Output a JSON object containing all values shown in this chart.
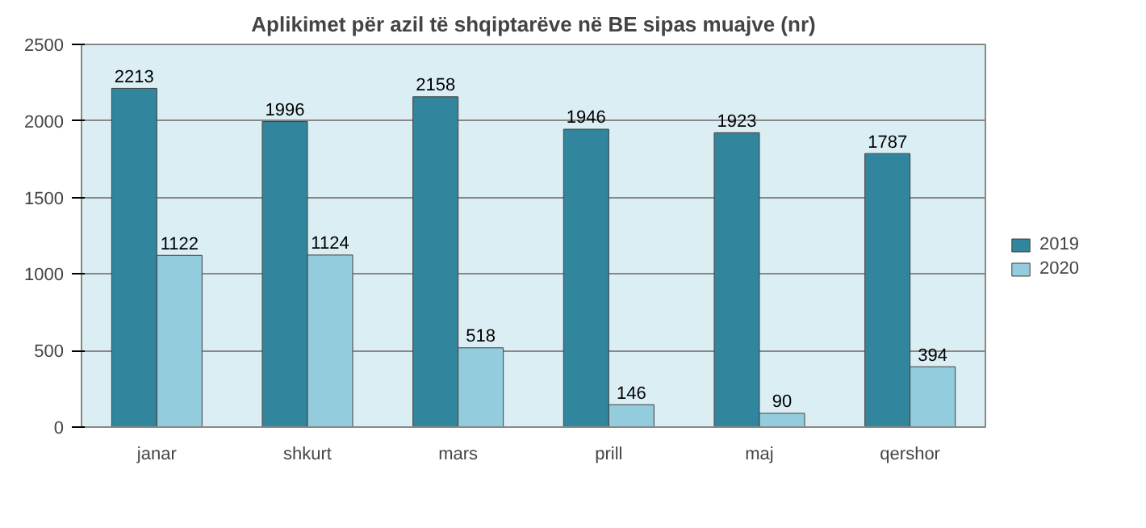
{
  "chart_data": {
    "type": "bar",
    "title": "Aplikimet për azil të shqiptarëve në BE sipas muajve (nr)",
    "categories": [
      "janar",
      "shkurt",
      "mars",
      "prill",
      "maj",
      "qershor"
    ],
    "series": [
      {
        "name": "2019",
        "color": "#31859c",
        "values": [
          2213,
          1996,
          2158,
          1946,
          1923,
          1787
        ]
      },
      {
        "name": "2020",
        "color": "#93cddd",
        "values": [
          1122,
          1124,
          518,
          146,
          90,
          394
        ]
      }
    ],
    "ylim": [
      0,
      2500
    ],
    "yticks": [
      0,
      500,
      1000,
      1500,
      2000,
      2500
    ],
    "grid": "y",
    "legend": "right",
    "data_labels": true
  }
}
